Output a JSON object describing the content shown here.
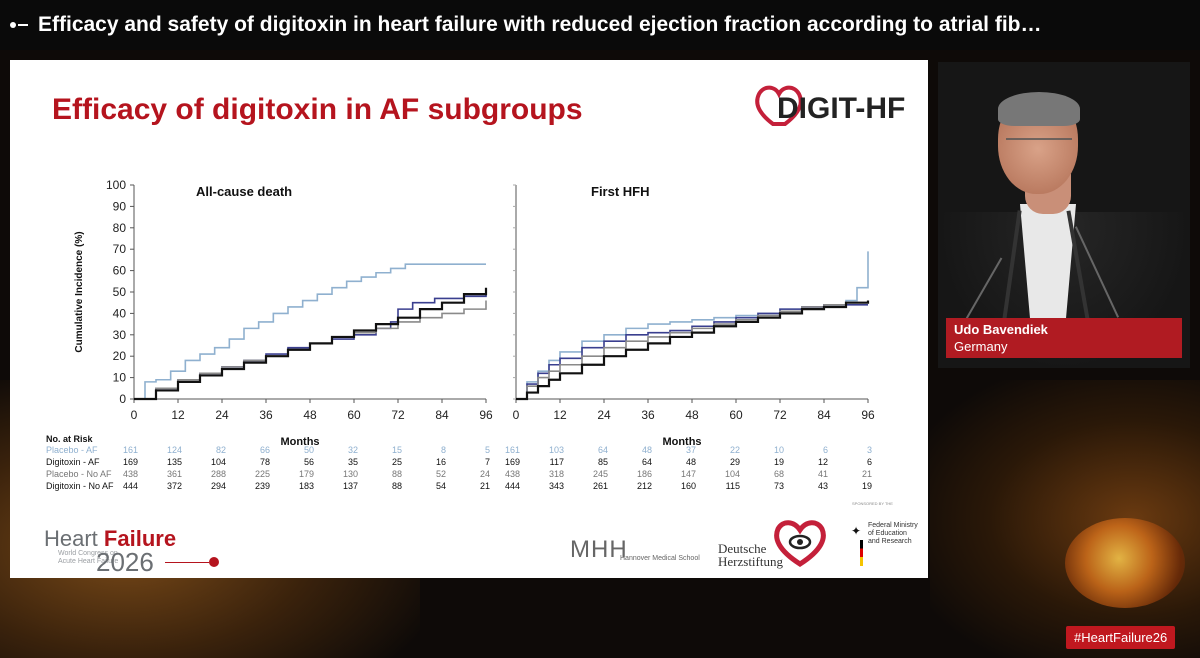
{
  "window": {
    "title": "Efficacy and safety of digitoxin in heart failure with reduced ejection fraction according to atrial fib…"
  },
  "slide": {
    "title": "Efficacy of digitoxin in AF subgroups",
    "logo_text": "DIGIT-HF",
    "sponsor_text": "SPONSORED BY THE",
    "footer": {
      "hf_title_a": "Heart ",
      "hf_title_b": "Failure",
      "hf_sub1": "World Congress on",
      "hf_sub2": "Acute Heart Failure",
      "hf_year": "2026",
      "mhh": "MHH",
      "mhh_sub": "Hannover Medical School",
      "dhs1": "Deutsche",
      "dhs2": "Herzstiftung",
      "bmbf1": "Federal Ministry",
      "bmbf2": "of Education",
      "bmbf3": "and Research"
    }
  },
  "chart_data": [
    {
      "type": "line",
      "title": "All-cause death",
      "ylabel": "Cumulative Incidence (%)",
      "xlabel": "Months",
      "ylim": [
        0,
        100
      ],
      "xlim": [
        0,
        96
      ],
      "x_ticks": [
        0,
        12,
        24,
        36,
        48,
        60,
        72,
        84,
        96
      ],
      "y_ticks": [
        0,
        10,
        20,
        30,
        40,
        50,
        60,
        70,
        80,
        90,
        100
      ],
      "series": [
        {
          "name": "Placebo - AF",
          "color": "#8fb0cf",
          "x": [
            0,
            3,
            6,
            10,
            14,
            18,
            22,
            26,
            30,
            34,
            38,
            42,
            46,
            50,
            54,
            58,
            62,
            66,
            70,
            74,
            96
          ],
          "y": [
            0,
            8,
            9,
            13,
            18,
            21,
            24,
            28,
            33,
            36,
            40,
            43,
            46,
            49,
            52,
            55,
            57,
            59,
            61,
            63,
            63
          ]
        },
        {
          "name": "Digitoxin - AF",
          "color": "#3a3f8f",
          "x": [
            0,
            6,
            12,
            18,
            24,
            30,
            36,
            42,
            48,
            54,
            60,
            64,
            66,
            70,
            72,
            76,
            82,
            90,
            96
          ],
          "y": [
            0,
            5,
            9,
            12,
            15,
            18,
            21,
            24,
            26,
            28,
            30,
            30,
            33,
            36,
            42,
            45,
            47,
            48,
            49
          ]
        },
        {
          "name": "Placebo - No AF",
          "color": "#8a8a8a",
          "x": [
            0,
            6,
            12,
            18,
            24,
            30,
            36,
            42,
            48,
            54,
            60,
            66,
            72,
            78,
            84,
            90,
            96
          ],
          "y": [
            0,
            5,
            9,
            12,
            15,
            18,
            20,
            23,
            26,
            29,
            31,
            33,
            36,
            38,
            40,
            42,
            46
          ]
        },
        {
          "name": "Digitoxin - No AF",
          "color": "#111111",
          "x": [
            0,
            6,
            12,
            18,
            24,
            30,
            36,
            42,
            48,
            54,
            60,
            66,
            72,
            78,
            84,
            90,
            96
          ],
          "y": [
            0,
            4,
            8,
            11,
            14,
            17,
            20,
            23,
            26,
            29,
            32,
            35,
            38,
            42,
            45,
            49,
            52
          ]
        }
      ],
      "risk_table": {
        "header": "No. at Risk",
        "rows": [
          {
            "label": "Placebo - AF",
            "color": "#8fb0cf",
            "values": [
              "161",
              "124",
              "82",
              "66",
              "50",
              "32",
              "15",
              "8",
              "5"
            ]
          },
          {
            "label": "Digitoxin - AF",
            "color": "#111111",
            "values": [
              "169",
              "135",
              "104",
              "78",
              "56",
              "35",
              "25",
              "16",
              "7"
            ]
          },
          {
            "label": "Placebo - No AF",
            "color": "#777777",
            "values": [
              "438",
              "361",
              "288",
              "225",
              "179",
              "130",
              "88",
              "52",
              "24"
            ]
          },
          {
            "label": "Digitoxin - No AF",
            "color": "#111111",
            "values": [
              "444",
              "372",
              "294",
              "239",
              "183",
              "137",
              "88",
              "54",
              "21"
            ]
          }
        ]
      }
    },
    {
      "type": "line",
      "title": "First HFH",
      "xlabel": "Months",
      "ylim": [
        0,
        100
      ],
      "xlim": [
        0,
        96
      ],
      "x_ticks": [
        0,
        12,
        24,
        36,
        48,
        60,
        72,
        84,
        96
      ],
      "series": [
        {
          "name": "Placebo - AF",
          "color": "#8fb0cf",
          "x": [
            0,
            3,
            6,
            9,
            12,
            18,
            24,
            30,
            36,
            42,
            48,
            54,
            60,
            66,
            72,
            78,
            84,
            90,
            93,
            96
          ],
          "y": [
            0,
            8,
            13,
            18,
            22,
            27,
            30,
            33,
            35,
            36,
            37,
            38,
            39,
            40,
            42,
            43,
            44,
            46,
            52,
            69
          ]
        },
        {
          "name": "Digitoxin - AF",
          "color": "#3a3f8f",
          "x": [
            0,
            3,
            6,
            9,
            12,
            18,
            24,
            30,
            36,
            42,
            48,
            54,
            60,
            66,
            72,
            78,
            84,
            90,
            96
          ],
          "y": [
            0,
            7,
            12,
            16,
            19,
            24,
            27,
            30,
            31,
            32,
            34,
            36,
            38,
            40,
            42,
            43,
            44,
            44,
            44
          ]
        },
        {
          "name": "Placebo - No AF",
          "color": "#8a8a8a",
          "x": [
            0,
            3,
            6,
            9,
            12,
            18,
            24,
            30,
            36,
            42,
            48,
            54,
            60,
            66,
            72,
            78,
            84,
            90,
            96
          ],
          "y": [
            0,
            6,
            10,
            13,
            16,
            20,
            24,
            27,
            29,
            31,
            33,
            35,
            37,
            39,
            41,
            43,
            44,
            45,
            46
          ]
        },
        {
          "name": "Digitoxin - No AF",
          "color": "#111111",
          "x": [
            0,
            3,
            6,
            9,
            12,
            18,
            24,
            30,
            36,
            42,
            48,
            54,
            60,
            66,
            72,
            78,
            84,
            90,
            96
          ],
          "y": [
            0,
            3,
            6,
            9,
            12,
            16,
            20,
            23,
            26,
            29,
            31,
            34,
            36,
            38,
            40,
            42,
            43,
            45,
            46
          ]
        }
      ],
      "risk_table": {
        "rows": [
          {
            "label": "Placebo - AF",
            "color": "#8fb0cf",
            "values": [
              "161",
              "103",
              "64",
              "48",
              "37",
              "22",
              "10",
              "6",
              "3"
            ]
          },
          {
            "label": "Digitoxin - AF",
            "color": "#111111",
            "values": [
              "169",
              "117",
              "85",
              "64",
              "48",
              "29",
              "19",
              "12",
              "6"
            ]
          },
          {
            "label": "Placebo - No AF",
            "color": "#777777",
            "values": [
              "438",
              "318",
              "245",
              "186",
              "147",
              "104",
              "68",
              "41",
              "21"
            ]
          },
          {
            "label": "Digitoxin - No AF",
            "color": "#111111",
            "values": [
              "444",
              "343",
              "261",
              "212",
              "160",
              "115",
              "73",
              "43",
              "19"
            ]
          }
        ]
      }
    }
  ],
  "speaker": {
    "name": "Udo Bavendiek",
    "country": "Germany"
  },
  "hashtag": "#HeartFailure26"
}
